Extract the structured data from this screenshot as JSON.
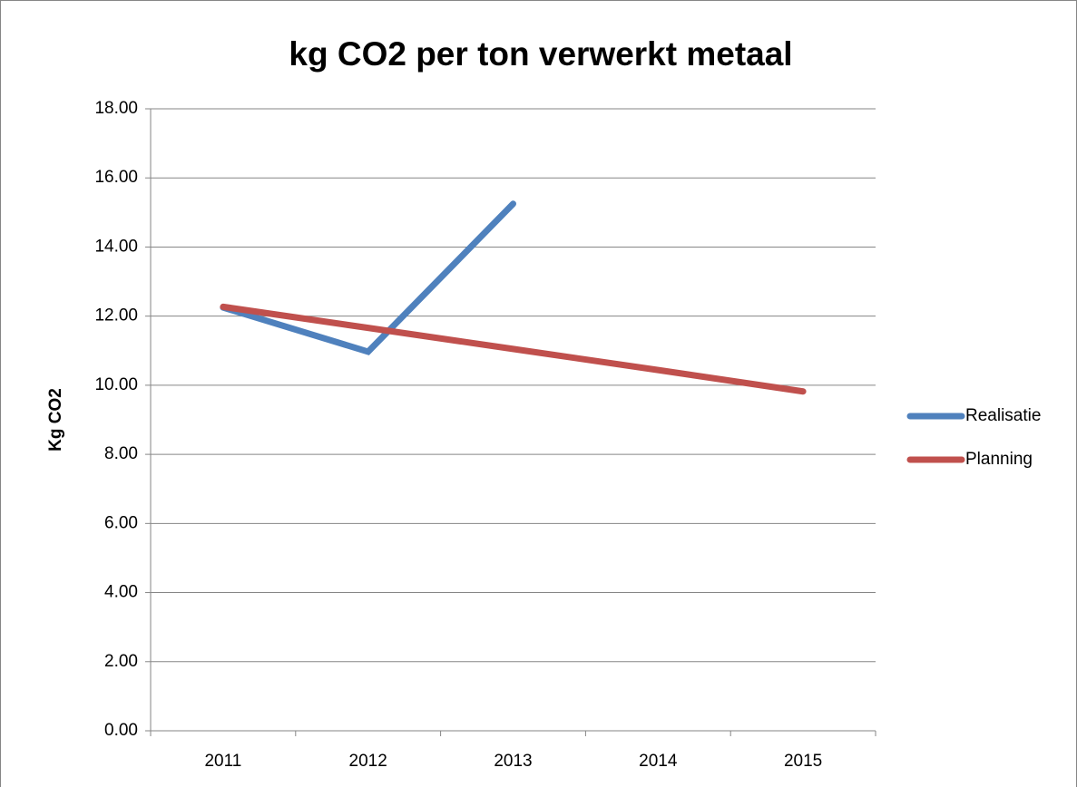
{
  "chart_data": {
    "type": "line",
    "title": "kg CO2 per ton verwerkt metaal",
    "y_label": "Kg CO2",
    "categories": [
      "2011",
      "2012",
      "2013",
      "2014",
      "2015"
    ],
    "series": [
      {
        "name": "Realisatie",
        "color": "#4f81bd",
        "values": [
          12.25,
          10.97,
          15.25,
          null,
          null
        ]
      },
      {
        "name": "Planning",
        "color": "#c0504d",
        "values": [
          12.27,
          11.66,
          11.05,
          10.44,
          9.82
        ]
      }
    ],
    "ylim": [
      0,
      18
    ],
    "yticks": [
      {
        "value": 0,
        "label": "0.00"
      },
      {
        "value": 2,
        "label": "2.00"
      },
      {
        "value": 4,
        "label": "4.00"
      },
      {
        "value": 6,
        "label": "6.00"
      },
      {
        "value": 8,
        "label": "8.00"
      },
      {
        "value": 10,
        "label": "10.00"
      },
      {
        "value": 12,
        "label": "12.00"
      },
      {
        "value": 14,
        "label": "14.00"
      },
      {
        "value": 16,
        "label": "16.00"
      },
      {
        "value": 18,
        "label": "18.00"
      }
    ],
    "grid": true,
    "legend": "right"
  }
}
